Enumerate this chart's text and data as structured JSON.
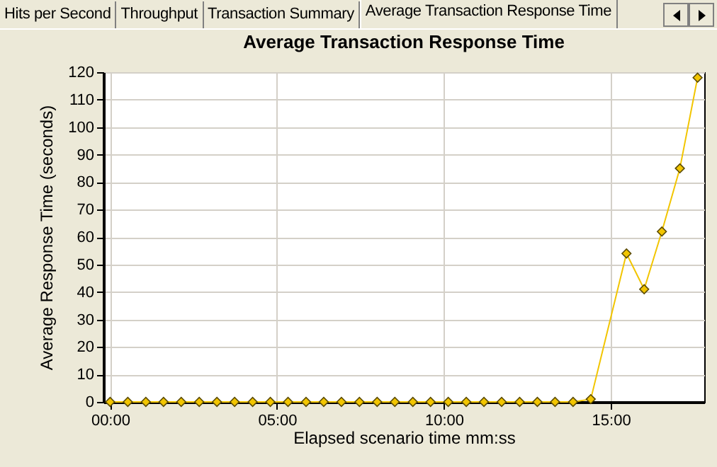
{
  "chart_data": {
    "type": "line",
    "title": "Average Transaction Response Time",
    "xlabel": "Elapsed scenario time mm:ss",
    "ylabel": "Average Response Time (seconds)",
    "annotations": [
      "Hits per Second",
      "Throughput",
      "Transaction Summary",
      "Average Transaction Response Time"
    ],
    "x": [
      0,
      0.53,
      1.07,
      1.6,
      2.13,
      2.67,
      3.2,
      3.73,
      4.27,
      4.8,
      5.33,
      5.87,
      6.4,
      6.93,
      7.47,
      8,
      8.53,
      9.07,
      9.6,
      10.13,
      10.67,
      11.2,
      11.73,
      12.27,
      12.8,
      13.33,
      13.87,
      14.4,
      15.47,
      16,
      16.53,
      17.07,
      17.6
    ],
    "series": [
      {
        "color": "#f2c500",
        "values": [
          0,
          0,
          0,
          0,
          0,
          0,
          0,
          0,
          0,
          0,
          0,
          0,
          0,
          0,
          0,
          0,
          0,
          0,
          0,
          0,
          0,
          0,
          0,
          0,
          0,
          0,
          0,
          1,
          54,
          41,
          62,
          85,
          118
        ]
      }
    ],
    "xlim": [
      -0.2,
      17.8
    ],
    "xticks": [
      {
        "value": 0,
        "label": "00:00"
      },
      {
        "value": 5,
        "label": "05:00"
      },
      {
        "value": 10,
        "label": "10:00"
      },
      {
        "value": 15,
        "label": "15:00"
      }
    ],
    "ylim": [
      0,
      120
    ],
    "yticks": [
      0,
      10,
      20,
      30,
      40,
      50,
      60,
      70,
      80,
      90,
      100,
      110,
      120
    ],
    "grid": true,
    "marker": "diamond",
    "line_style": "solid"
  }
}
